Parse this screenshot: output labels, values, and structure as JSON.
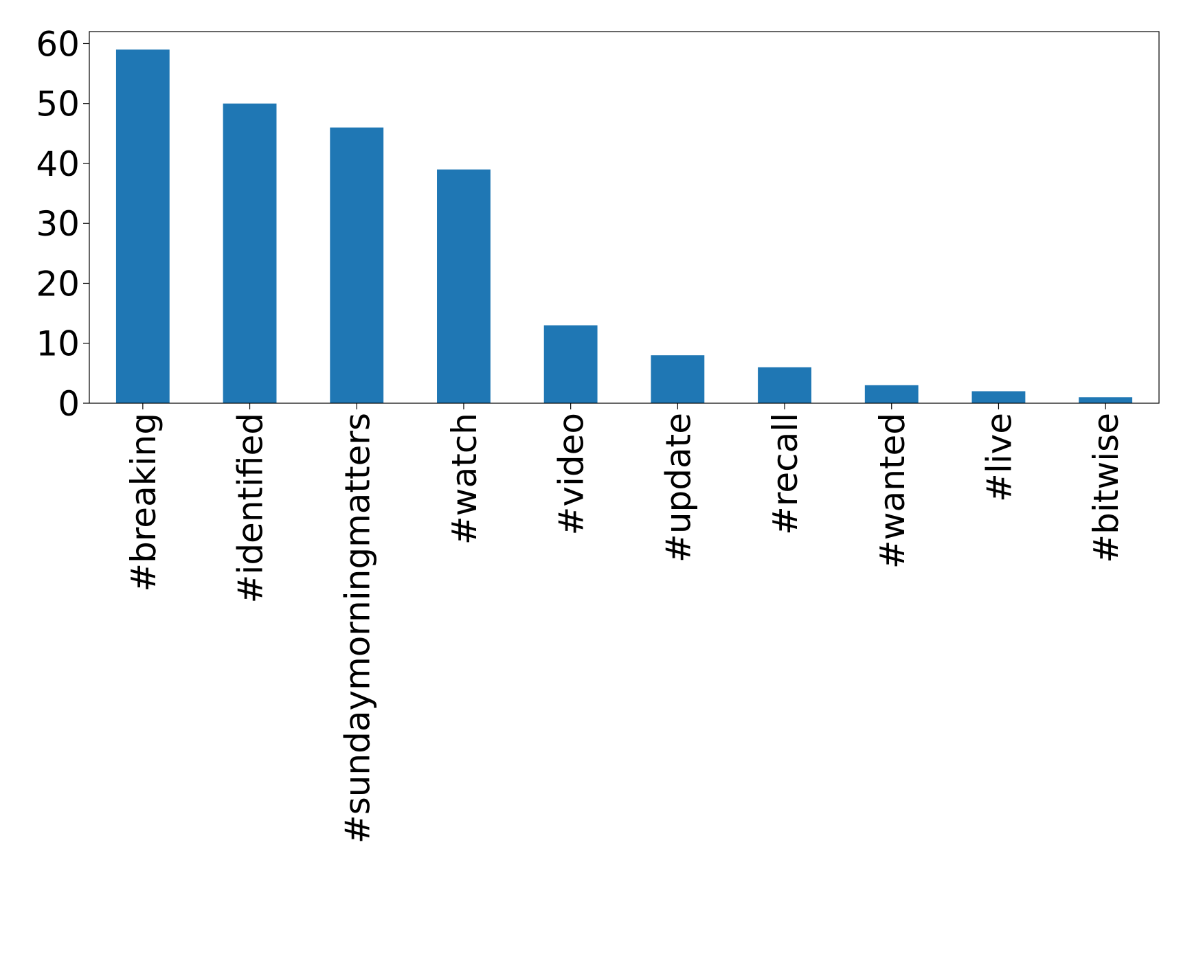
{
  "chart_data": {
    "type": "bar",
    "categories": [
      "#breaking",
      "#identified",
      "#sundaymorningmatters",
      "#watch",
      "#video",
      "#update",
      "#recall",
      "#wanted",
      "#live",
      "#bitwise"
    ],
    "values": [
      59,
      50,
      46,
      39,
      13,
      8,
      6,
      3,
      2,
      1
    ],
    "color": "#1f77b4",
    "ylim": [
      0,
      62
    ],
    "yticks": [
      0,
      10,
      20,
      30,
      40,
      50,
      60
    ],
    "grid": false
  }
}
